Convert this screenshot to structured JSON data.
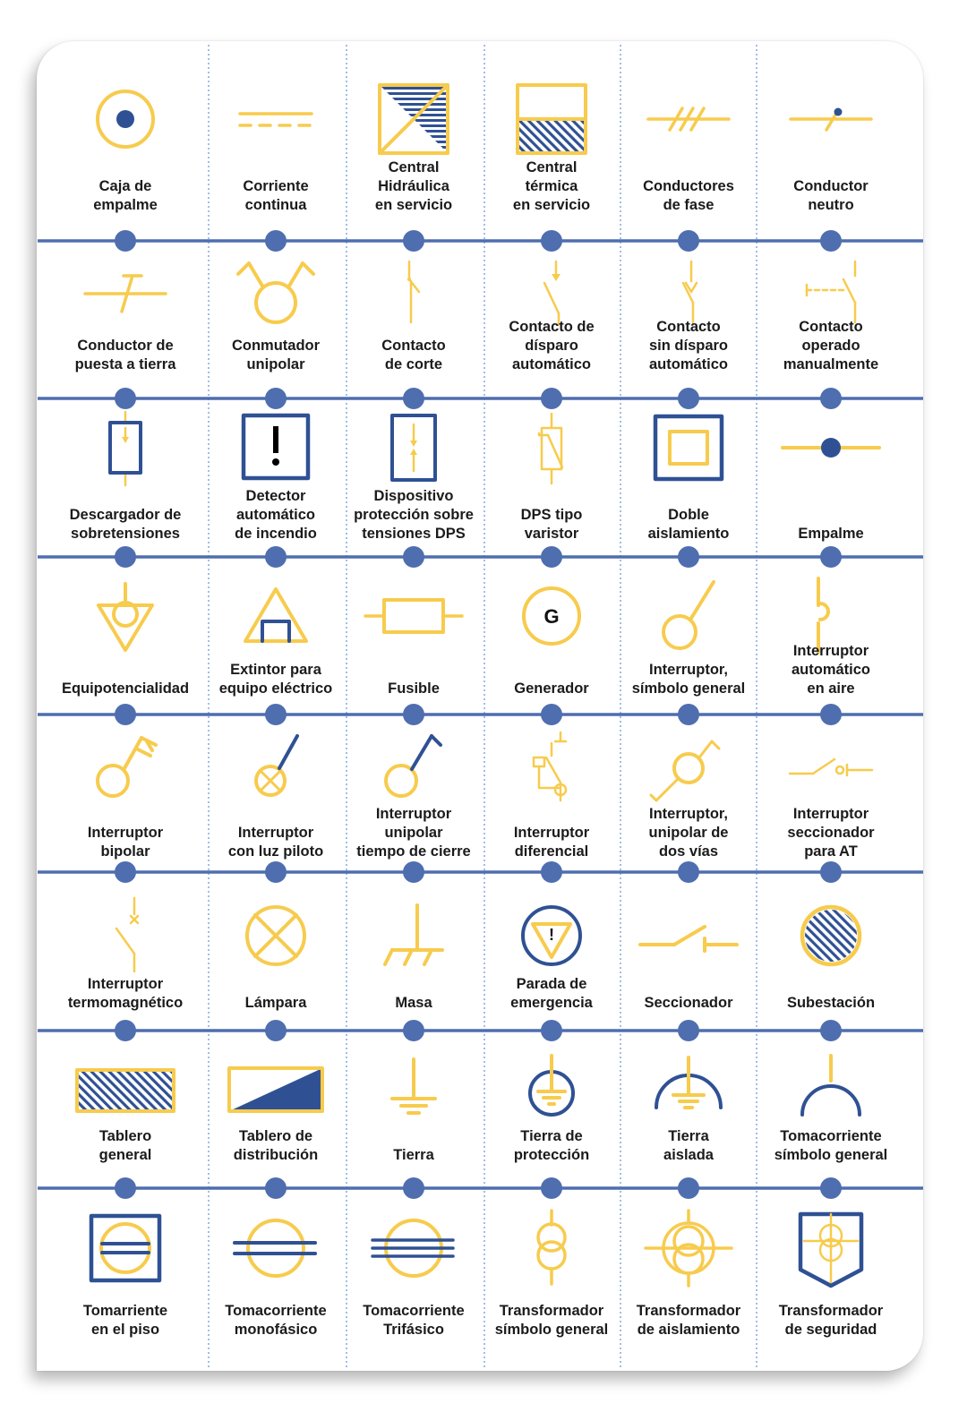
{
  "colors": {
    "yellow": "#F7CB4D",
    "blue": "#2F5194",
    "line": "#4F6EAF",
    "text": "#1b1b1b",
    "dots": "#6F9BD8"
  },
  "symbols": [
    [
      {
        "icon": "caja-empalme",
        "label": [
          "Caja de",
          "empalme"
        ]
      },
      {
        "icon": "corriente-continua",
        "label": [
          "Corriente",
          "continua"
        ]
      },
      {
        "icon": "central-hidraulica",
        "label": [
          "Central",
          "Hidráulica",
          "en servicio"
        ]
      },
      {
        "icon": "central-termica",
        "label": [
          "Central",
          "térmica",
          "en servicio"
        ]
      },
      {
        "icon": "conductores-fase",
        "label": [
          "Conductores",
          "de fase"
        ]
      },
      {
        "icon": "conductor-neutro",
        "label": [
          "Conductor",
          "neutro"
        ]
      }
    ],
    [
      {
        "icon": "conductor-tierra",
        "label": [
          "Conductor de",
          "puesta a tierra"
        ]
      },
      {
        "icon": "conmutador-unipolar",
        "label": [
          "Conmutador",
          "unipolar"
        ]
      },
      {
        "icon": "contacto-corte",
        "label": [
          "Contacto",
          "de corte"
        ]
      },
      {
        "icon": "contacto-disparo",
        "label": [
          "Contacto de",
          "dísparo",
          "automático"
        ]
      },
      {
        "icon": "contacto-sin-disparo",
        "label": [
          "Contacto",
          "sin dísparo",
          "automático"
        ]
      },
      {
        "icon": "contacto-manual",
        "label": [
          "Contacto",
          "operado",
          "manualmente"
        ]
      }
    ],
    [
      {
        "icon": "descargador",
        "label": [
          "Descargador de",
          "sobretensiones"
        ]
      },
      {
        "icon": "detector-incendio",
        "label": [
          "Detector",
          "automático",
          "de incendio"
        ]
      },
      {
        "icon": "dps",
        "label": [
          "Dispositivo",
          "protección sobre",
          "tensiones DPS"
        ]
      },
      {
        "icon": "dps-varistor",
        "label": [
          "DPS tipo",
          "varistor"
        ]
      },
      {
        "icon": "doble-aislamiento",
        "label": [
          "Doble",
          "aislamiento"
        ]
      },
      {
        "icon": "empalme",
        "label": [
          "Empalme"
        ]
      }
    ],
    [
      {
        "icon": "equipotencialidad",
        "label": [
          "Equipotencialidad"
        ]
      },
      {
        "icon": "extintor",
        "label": [
          "Extintor para",
          "equipo eléctrico"
        ]
      },
      {
        "icon": "fusible",
        "label": [
          "Fusible"
        ]
      },
      {
        "icon": "generador",
        "label": [
          "Generador"
        ],
        "glyph": "G"
      },
      {
        "icon": "interruptor-general",
        "label": [
          "Interruptor,",
          "símbolo general"
        ]
      },
      {
        "icon": "interruptor-aire",
        "label": [
          "Interruptor",
          "automático",
          "en aire"
        ]
      }
    ],
    [
      {
        "icon": "interruptor-bipolar",
        "label": [
          "Interruptor",
          "bipolar"
        ]
      },
      {
        "icon": "interruptor-luz-piloto",
        "label": [
          "Interruptor",
          "con luz piloto"
        ]
      },
      {
        "icon": "interruptor-tiempo",
        "label": [
          "Interruptor",
          "unipolar",
          "tiempo de cierre"
        ]
      },
      {
        "icon": "interruptor-diferencial",
        "label": [
          "Interruptor",
          "diferencial"
        ]
      },
      {
        "icon": "interruptor-dos-vias",
        "label": [
          "Interruptor,",
          "unipolar de",
          "dos vías"
        ]
      },
      {
        "icon": "interruptor-seccionador",
        "label": [
          "Interruptor",
          "seccionador",
          "para AT"
        ]
      }
    ],
    [
      {
        "icon": "interruptor-termomagnetico",
        "label": [
          "Interruptor",
          "termomagnético"
        ]
      },
      {
        "icon": "lampara",
        "label": [
          "Lámpara"
        ]
      },
      {
        "icon": "masa",
        "label": [
          "Masa"
        ]
      },
      {
        "icon": "parada-emergencia",
        "label": [
          "Parada de",
          "emergencia"
        ],
        "glyph": "!"
      },
      {
        "icon": "seccionador",
        "label": [
          "Seccionador"
        ]
      },
      {
        "icon": "subestacion",
        "label": [
          "Subestación"
        ]
      }
    ],
    [
      {
        "icon": "tablero-general",
        "label": [
          "Tablero",
          "general"
        ]
      },
      {
        "icon": "tablero-distribucion",
        "label": [
          "Tablero de",
          "distribución"
        ]
      },
      {
        "icon": "tierra",
        "label": [
          "Tierra"
        ]
      },
      {
        "icon": "tierra-proteccion",
        "label": [
          "Tierra de",
          "protección"
        ]
      },
      {
        "icon": "tierra-aislada",
        "label": [
          "Tierra",
          "aislada"
        ]
      },
      {
        "icon": "tomacorriente-general",
        "label": [
          "Tomacorriente",
          "símbolo general"
        ]
      }
    ],
    [
      {
        "icon": "tomacorriente-piso",
        "label": [
          "Tomarriente",
          "en el piso"
        ]
      },
      {
        "icon": "tomacorriente-monofasico",
        "label": [
          "Tomacorriente",
          "monofásico"
        ]
      },
      {
        "icon": "tomacorriente-trifasico",
        "label": [
          "Tomacorriente",
          "Trifásico"
        ]
      },
      {
        "icon": "transformador-general",
        "label": [
          "Transformador",
          "símbolo general"
        ]
      },
      {
        "icon": "transformador-aislamiento",
        "label": [
          "Transformador",
          "de aislamiento"
        ]
      },
      {
        "icon": "transformador-seguridad",
        "label": [
          "Transformador",
          "de seguridad"
        ]
      }
    ]
  ]
}
